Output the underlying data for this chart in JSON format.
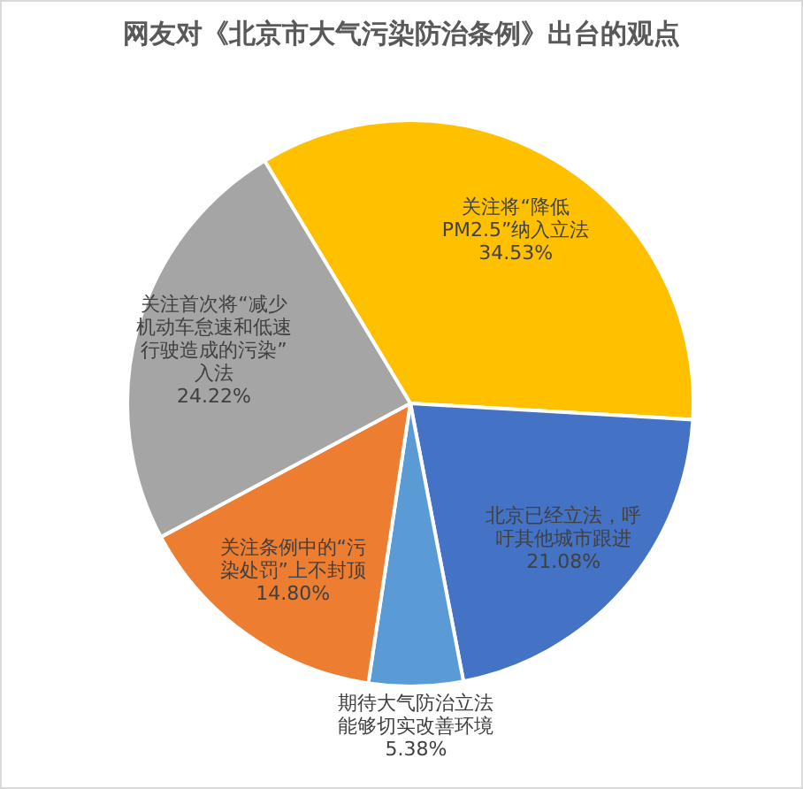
{
  "chart_data": {
    "type": "pie",
    "title": "网友对《北京市大气污染防治条例》出台的观点",
    "categories": [
      "关注将“降低PM2.5”纳入立法",
      "北京已经立法，呼吁其他城市跟进",
      "期待大气防治立法能够切实改善环境",
      "关注条例中的“污染处罚”上不封顶",
      "关注首次将“减少机动车怠速和低速行驶造成的污染”入法"
    ],
    "values": [
      34.53,
      21.08,
      5.38,
      14.8,
      24.22
    ],
    "colors": [
      "#ffc000",
      "#4472c4",
      "#5b9bd5",
      "#ed7d31",
      "#a5a5a5"
    ],
    "value_labels": [
      "34.53%",
      "21.08%",
      "5.38%",
      "14.80%",
      "24.22%"
    ]
  }
}
